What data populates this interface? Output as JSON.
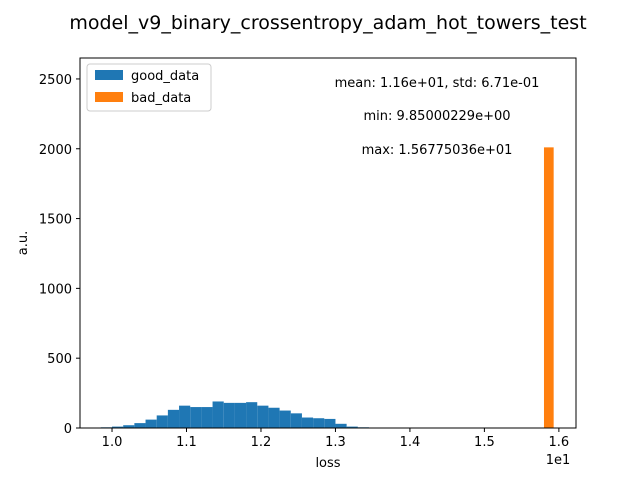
{
  "figure": {
    "title": "model_v9_binary_crossentropy_adam_hot_towers_test",
    "xlabel": "loss",
    "ylabel": "a.u.",
    "x_offset_label": "1e1",
    "stats": {
      "mean_std": "mean: 1.16e+01, std: 6.71e-01",
      "min": "min: 9.85000229e+00",
      "max": "max: 1.56775036e+01"
    }
  },
  "chart_data": {
    "type": "bar",
    "title": "model_v9_binary_crossentropy_adam_hot_towers_test",
    "xlabel": "loss",
    "ylabel": "a.u.",
    "xlim": [
      0.957,
      1.623
    ],
    "ylim": [
      0,
      2650
    ],
    "x_ticks": [
      1.0,
      1.1,
      1.2,
      1.3,
      1.4,
      1.5,
      1.6
    ],
    "x_tick_labels": [
      "1.0",
      "1.1",
      "1.2",
      "1.3",
      "1.4",
      "1.5",
      "1.6"
    ],
    "y_ticks": [
      0,
      500,
      1000,
      1500,
      2000,
      2500
    ],
    "y_tick_labels": [
      "0",
      "500",
      "1000",
      "1500",
      "2000",
      "2500"
    ],
    "legend_position": "top-left",
    "grid": false,
    "series": [
      {
        "name": "good_data",
        "color": "#1f77b4",
        "bins": [
          {
            "x0": 0.985,
            "x1": 1.0,
            "value": 5
          },
          {
            "x0": 1.0,
            "x1": 1.015,
            "value": 10
          },
          {
            "x0": 1.015,
            "x1": 1.03,
            "value": 20
          },
          {
            "x0": 1.03,
            "x1": 1.045,
            "value": 35
          },
          {
            "x0": 1.045,
            "x1": 1.06,
            "value": 60
          },
          {
            "x0": 1.06,
            "x1": 1.075,
            "value": 90
          },
          {
            "x0": 1.075,
            "x1": 1.09,
            "value": 130
          },
          {
            "x0": 1.09,
            "x1": 1.105,
            "value": 160
          },
          {
            "x0": 1.105,
            "x1": 1.12,
            "value": 150
          },
          {
            "x0": 1.12,
            "x1": 1.135,
            "value": 150
          },
          {
            "x0": 1.135,
            "x1": 1.15,
            "value": 190
          },
          {
            "x0": 1.15,
            "x1": 1.165,
            "value": 180
          },
          {
            "x0": 1.165,
            "x1": 1.18,
            "value": 180
          },
          {
            "x0": 1.18,
            "x1": 1.195,
            "value": 185
          },
          {
            "x0": 1.195,
            "x1": 1.21,
            "value": 160
          },
          {
            "x0": 1.21,
            "x1": 1.225,
            "value": 145
          },
          {
            "x0": 1.225,
            "x1": 1.24,
            "value": 125
          },
          {
            "x0": 1.24,
            "x1": 1.255,
            "value": 105
          },
          {
            "x0": 1.255,
            "x1": 1.27,
            "value": 75
          },
          {
            "x0": 1.27,
            "x1": 1.285,
            "value": 70
          },
          {
            "x0": 1.285,
            "x1": 1.3,
            "value": 65
          },
          {
            "x0": 1.3,
            "x1": 1.315,
            "value": 30
          },
          {
            "x0": 1.315,
            "x1": 1.33,
            "value": 10
          },
          {
            "x0": 1.33,
            "x1": 1.345,
            "value": 5
          }
        ]
      },
      {
        "name": "bad_data",
        "color": "#ff7f0e",
        "bins": [
          {
            "x0": 1.58,
            "x1": 1.593,
            "value": 2010
          }
        ]
      }
    ]
  }
}
